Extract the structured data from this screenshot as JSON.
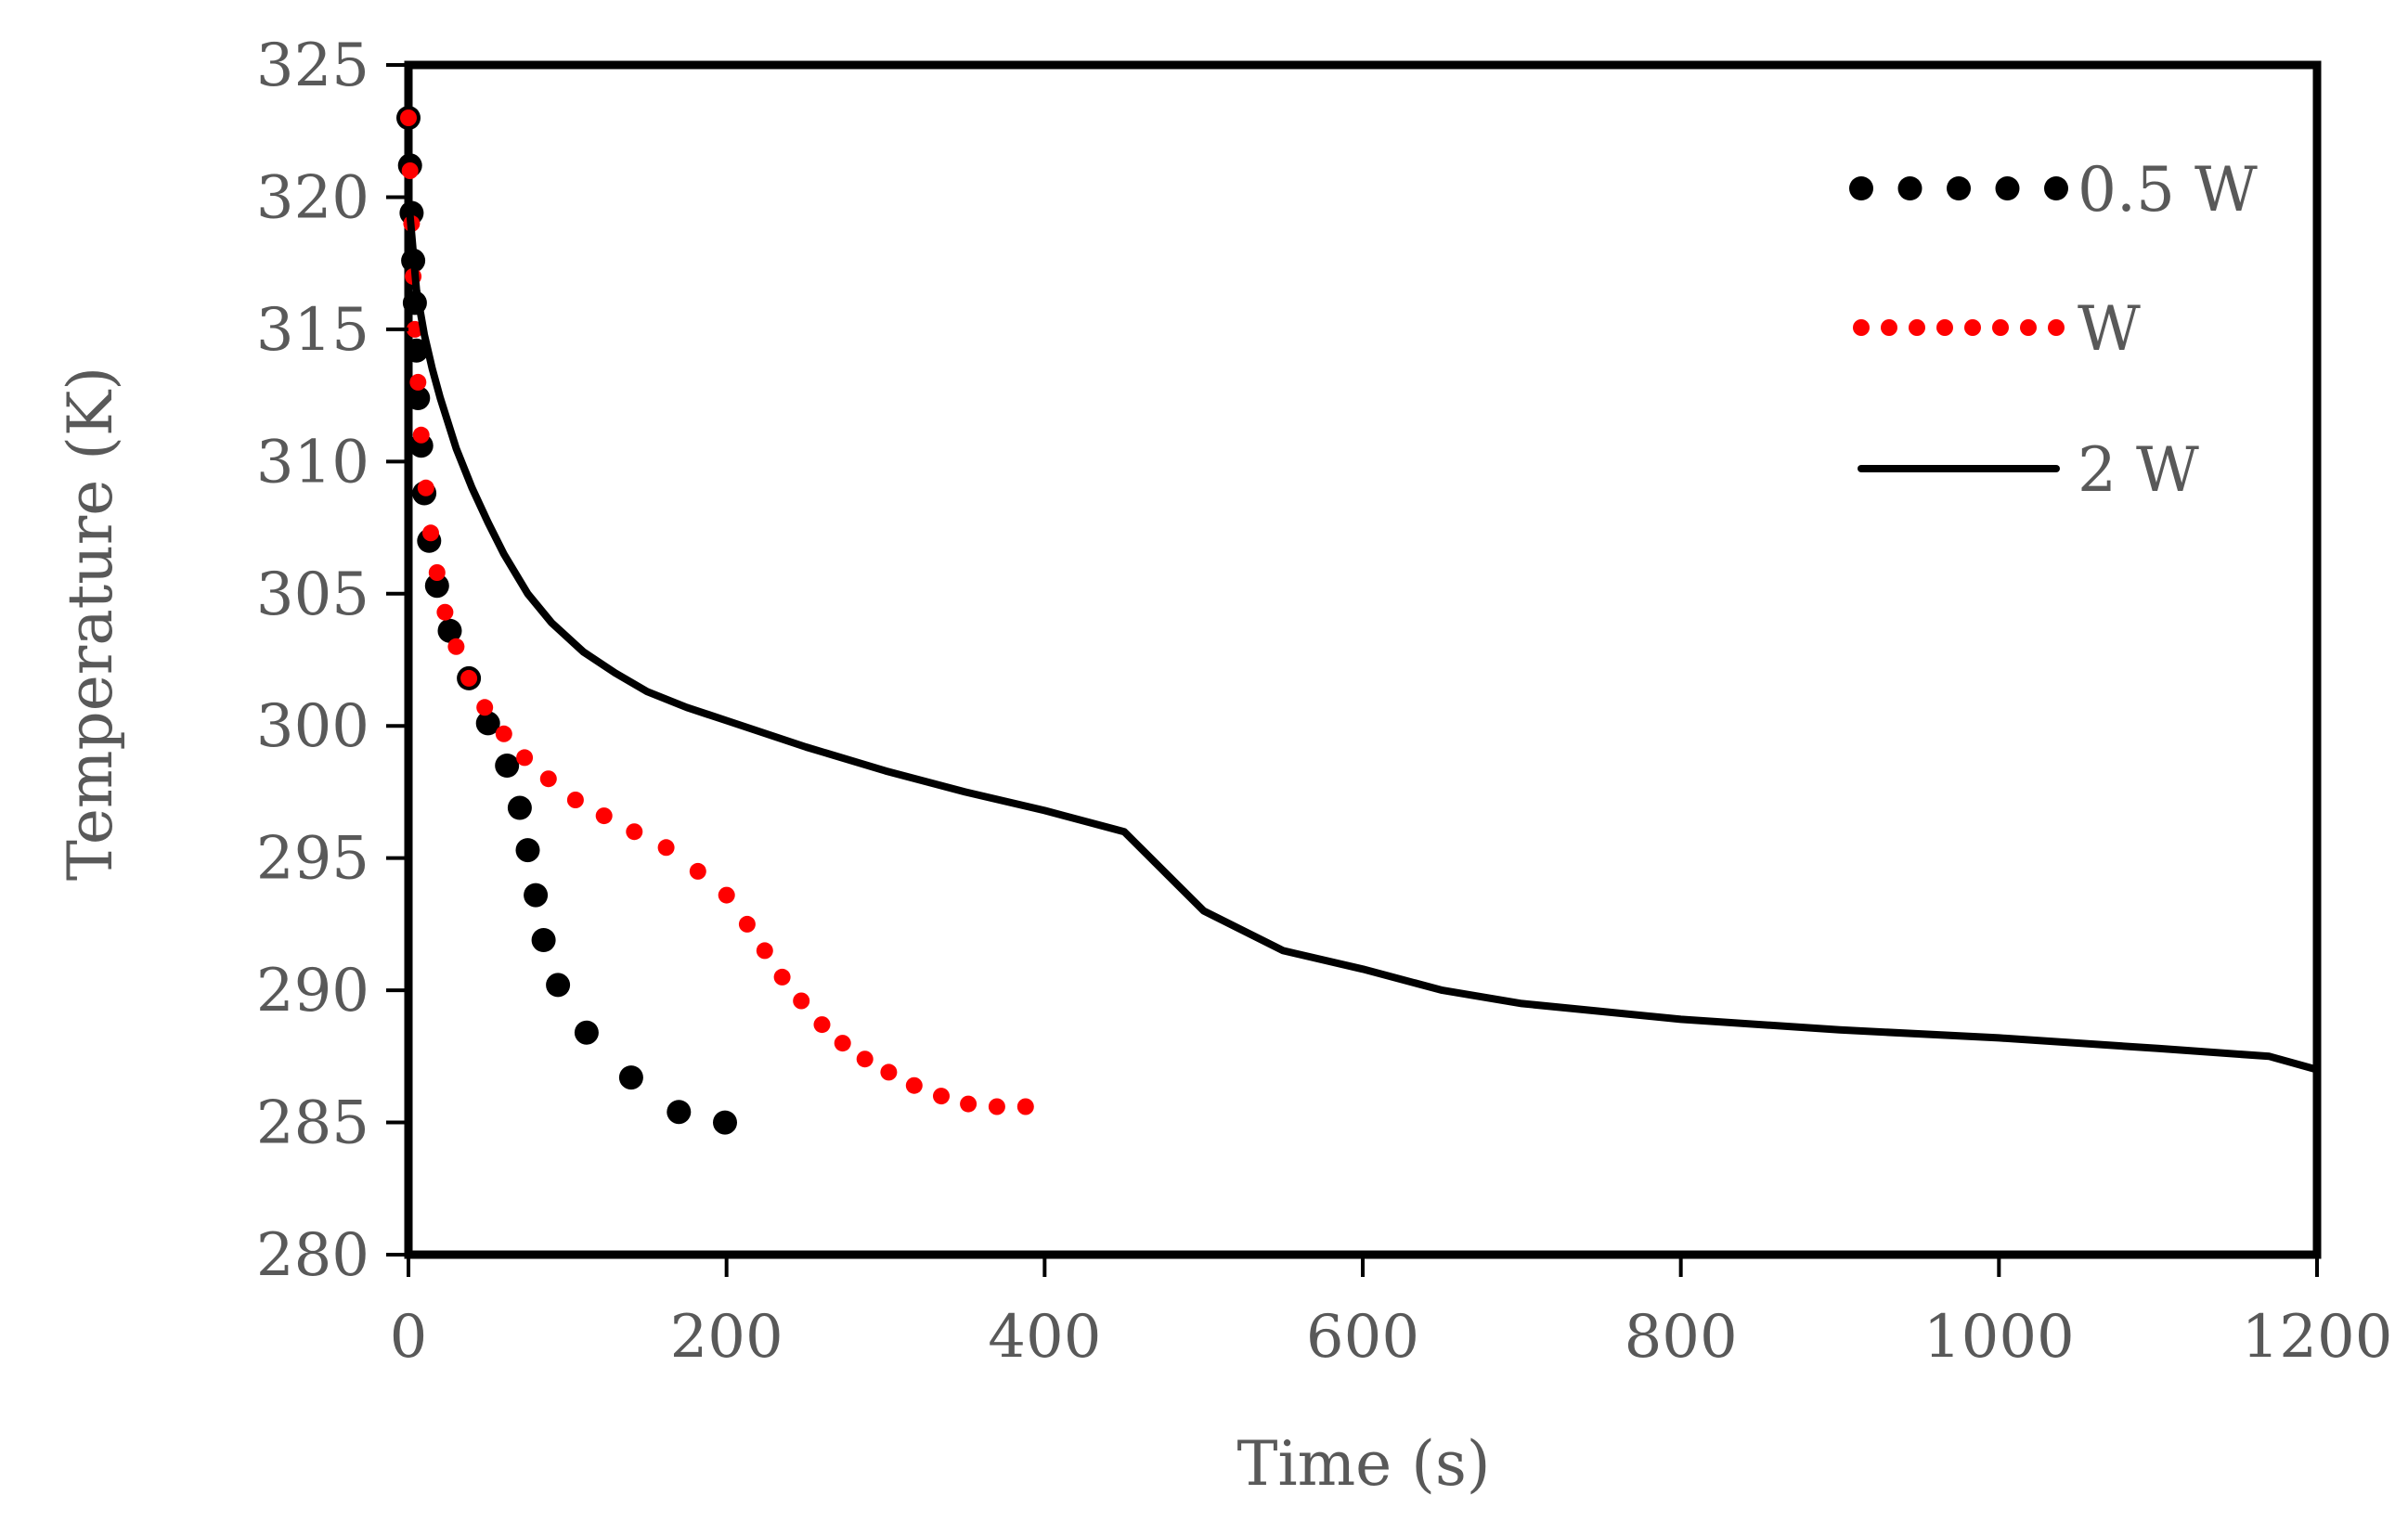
{
  "chart_data": {
    "type": "line",
    "title": "",
    "xlabel": "Time (s)",
    "ylabel": "Temperature (K)",
    "xlim": [
      0,
      1200
    ],
    "ylim": [
      280,
      325
    ],
    "xticks": [
      0,
      200,
      400,
      600,
      800,
      1000,
      1200
    ],
    "yticks": [
      280,
      285,
      290,
      295,
      300,
      305,
      310,
      315,
      320,
      325
    ],
    "grid": false,
    "legend_position": "top-right",
    "series": [
      {
        "name": "0.5 W",
        "style": "dotted",
        "color": "#000000",
        "x": [
          0,
          1,
          2,
          3,
          4,
          5,
          6,
          8,
          10,
          13,
          18,
          26,
          38,
          50,
          62,
          70,
          75,
          80,
          85,
          94,
          112,
          140,
          170,
          199
        ],
        "y": [
          323.0,
          321.2,
          319.4,
          317.6,
          316.0,
          314.2,
          312.4,
          310.6,
          308.8,
          307.0,
          305.3,
          303.6,
          301.8,
          300.1,
          298.5,
          296.9,
          295.3,
          293.6,
          291.9,
          290.2,
          288.4,
          286.7,
          285.4,
          285.0
        ]
      },
      {
        "name": "W",
        "style": "dotted",
        "color": "#ff0000",
        "x": [
          0,
          1,
          2,
          3,
          4,
          6,
          8,
          11,
          14,
          18,
          23,
          30,
          38,
          48,
          60,
          73,
          88,
          105,
          123,
          142,
          162,
          182,
          200,
          213,
          224,
          235,
          247,
          260,
          273,
          287,
          302,
          318,
          335,
          352,
          370,
          388
        ],
        "y": [
          323.0,
          321.0,
          319.0,
          317.0,
          315.0,
          313.0,
          311.0,
          309.0,
          307.3,
          305.8,
          304.3,
          303.0,
          301.8,
          300.7,
          299.7,
          298.8,
          298.0,
          297.2,
          296.6,
          296.0,
          295.4,
          294.5,
          293.6,
          292.5,
          291.5,
          290.5,
          289.6,
          288.7,
          288.0,
          287.4,
          286.9,
          286.4,
          286.0,
          285.7,
          285.6,
          285.6
        ]
      },
      {
        "name": "2 W",
        "style": "solid",
        "color": "#000000",
        "x": [
          0,
          5,
          10,
          15,
          20,
          30,
          40,
          50,
          60,
          75,
          90,
          110,
          130,
          150,
          175,
          200,
          250,
          300,
          350,
          400,
          450,
          500,
          550,
          600,
          650,
          700,
          750,
          800,
          900,
          1000,
          1100,
          1170,
          1200
        ],
        "y": [
          320.0,
          316.5,
          314.8,
          313.5,
          312.4,
          310.5,
          309.0,
          307.7,
          306.5,
          305.0,
          303.9,
          302.8,
          302.0,
          301.3,
          300.7,
          300.2,
          299.2,
          298.3,
          297.5,
          296.8,
          296.0,
          293.0,
          291.5,
          290.8,
          290.0,
          289.5,
          289.2,
          288.9,
          288.5,
          288.2,
          287.8,
          287.5,
          287.0
        ]
      }
    ]
  }
}
